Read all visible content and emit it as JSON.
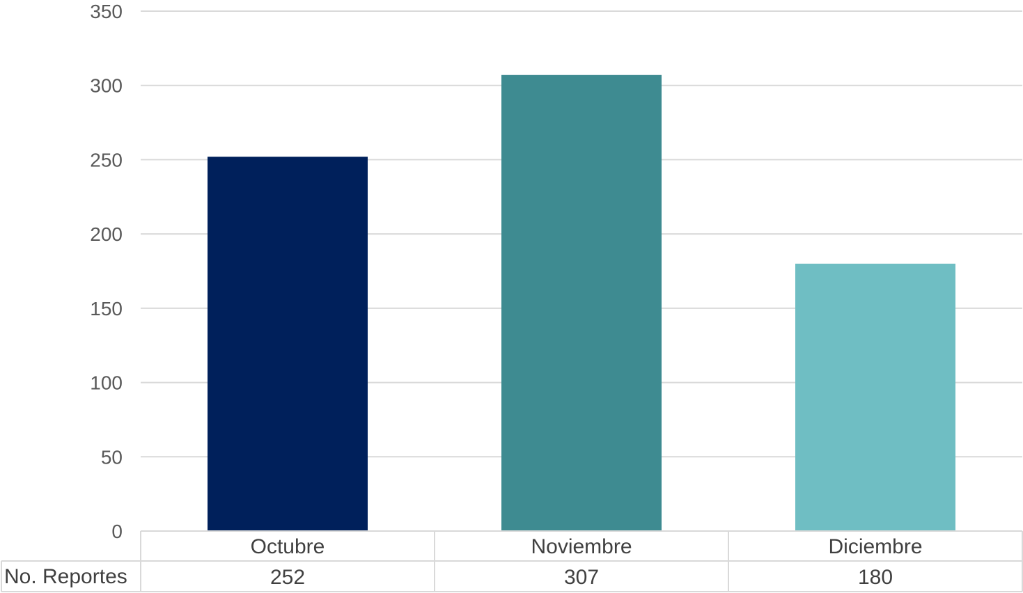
{
  "chart_data": {
    "type": "bar",
    "categories": [
      "Octubre",
      "Noviembre",
      "Diciembre"
    ],
    "series": [
      {
        "name": "No. Reportes",
        "values": [
          252,
          307,
          180
        ],
        "colors": [
          "#00205b",
          "#3e8b91",
          "#6fbec3"
        ]
      }
    ],
    "ylim": [
      0,
      350
    ],
    "yticks": [
      0,
      50,
      100,
      150,
      200,
      250,
      300,
      350
    ],
    "grid": true,
    "data_table": true,
    "data_table_row_label": "No. Reportes",
    "data_table_values": [
      "252",
      "307",
      "180"
    ]
  }
}
